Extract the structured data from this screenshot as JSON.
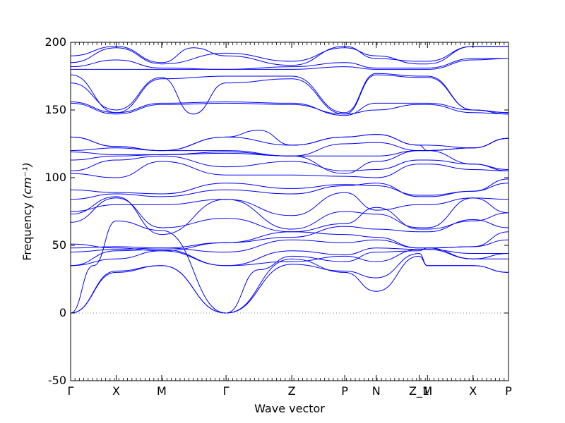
{
  "chart_data": {
    "type": "line",
    "title": "",
    "xlabel": "Wave vector",
    "ylabel": "Frequency",
    "ylabel_unit": "(cm⁻¹)",
    "ylim": [
      -50,
      200
    ],
    "yticks": [
      -50,
      0,
      50,
      100,
      150,
      200
    ],
    "xlim": [
      0,
      1
    ],
    "grid": false,
    "legend": "none",
    "line_color": "#0000ff",
    "zero_line_color": "#808080",
    "high_symmetry_points": [
      {
        "label": "Γ",
        "x": 0.0
      },
      {
        "label": "X",
        "x": 0.104
      },
      {
        "label": "M",
        "x": 0.208
      },
      {
        "label": "Γ",
        "x": 0.355
      },
      {
        "label": "Z",
        "x": 0.505
      },
      {
        "label": "P",
        "x": 0.626
      },
      {
        "label": "N",
        "x": 0.698
      },
      {
        "label": "Z_1",
        "x": 0.796
      },
      {
        "label": "M",
        "x": 0.815
      },
      {
        "label": "X",
        "x": 0.919
      },
      {
        "label": "P",
        "x": 1.0
      }
    ],
    "series": [
      {
        "x": [
          0,
          0.104,
          0.208,
          0.355,
          0.505,
          0.626,
          0.698,
          0.796,
          0.815,
          0.919,
          1
        ],
        "y": [
          0,
          30,
          35,
          0,
          40,
          30,
          16,
          42,
          35,
          35,
          30
        ]
      },
      {
        "x": [
          0,
          0.104,
          0.208,
          0.355,
          0.505,
          0.626,
          0.698,
          0.796,
          0.815,
          0.919,
          1
        ],
        "y": [
          0,
          31,
          35,
          0,
          36,
          31,
          26,
          44,
          35,
          35,
          30
        ]
      },
      {
        "x": [
          0,
          0.052,
          0.104,
          0.208,
          0.355,
          0.43,
          0.505,
          0.626,
          0.698,
          0.796,
          0.815,
          0.919,
          1
        ],
        "y": [
          0,
          35,
          68,
          61,
          0,
          32,
          42,
          38,
          45,
          46,
          48,
          40,
          40
        ]
      },
      {
        "x": [
          0,
          0.104,
          0.208,
          0.355,
          0.505,
          0.626,
          0.698,
          0.796,
          0.815,
          0.919,
          1
        ],
        "y": [
          35,
          40,
          46,
          35,
          38,
          42,
          38,
          47,
          47,
          40,
          44
        ]
      },
      {
        "x": [
          0,
          0.104,
          0.208,
          0.355,
          0.505,
          0.626,
          0.698,
          0.796,
          0.815,
          0.919,
          1
        ],
        "y": [
          35,
          46,
          47,
          35,
          46,
          43,
          48,
          47,
          47,
          44,
          44
        ]
      },
      {
        "x": [
          0,
          0.104,
          0.208,
          0.355,
          0.505,
          0.626,
          0.698,
          0.796,
          0.815,
          0.919,
          1
        ],
        "y": [
          45,
          47,
          48,
          45,
          54,
          52,
          54,
          48,
          48,
          49,
          54
        ]
      },
      {
        "x": [
          0,
          0.104,
          0.208,
          0.355,
          0.505,
          0.626,
          0.698,
          0.796,
          0.815,
          0.919,
          1
        ],
        "y": [
          48,
          49,
          48,
          52,
          60,
          58,
          56,
          48,
          48,
          49,
          60
        ]
      },
      {
        "x": [
          0,
          0.104,
          0.208,
          0.355,
          0.505,
          0.626,
          0.698,
          0.796,
          0.815,
          0.919,
          1
        ],
        "y": [
          51,
          48,
          46,
          52,
          56,
          64,
          62,
          60,
          60,
          69,
          63
        ]
      },
      {
        "x": [
          0,
          0.104,
          0.208,
          0.355,
          0.505,
          0.626,
          0.698,
          0.796,
          0.815,
          0.919,
          1
        ],
        "y": [
          67,
          85,
          63,
          70,
          60,
          66,
          78,
          62,
          62,
          68,
          74
        ]
      },
      {
        "x": [
          0,
          0.104,
          0.208,
          0.355,
          0.505,
          0.626,
          0.698,
          0.796,
          0.815,
          0.919,
          1
        ],
        "y": [
          73,
          86,
          58,
          84,
          62,
          75,
          73,
          63,
          63,
          85,
          74
        ]
      },
      {
        "x": [
          0,
          0.104,
          0.208,
          0.355,
          0.505,
          0.626,
          0.698,
          0.796,
          0.815,
          0.919,
          1
        ],
        "y": [
          75,
          80,
          80,
          84,
          72,
          89,
          76,
          80,
          80,
          85,
          84
        ]
      },
      {
        "x": [
          0,
          0.104,
          0.208,
          0.355,
          0.505,
          0.626,
          0.698,
          0.796,
          0.815,
          0.919,
          1
        ],
        "y": [
          84,
          88,
          86,
          91,
          88,
          94,
          96,
          86,
          86,
          90,
          96
        ]
      },
      {
        "x": [
          0,
          0.104,
          0.208,
          0.355,
          0.505,
          0.626,
          0.698,
          0.796,
          0.815,
          0.919,
          1
        ],
        "y": [
          91,
          89,
          88,
          96,
          92,
          95,
          94,
          87,
          87,
          90,
          99
        ]
      },
      {
        "x": [
          0,
          0.104,
          0.208,
          0.355,
          0.505,
          0.626,
          0.698,
          0.796,
          0.815,
          0.919,
          1
        ],
        "y": [
          103,
          100,
          112,
          102,
          102,
          101,
          100,
          110,
          110,
          106,
          105
        ]
      },
      {
        "x": [
          0,
          0.104,
          0.208,
          0.355,
          0.505,
          0.626,
          0.698,
          0.796,
          0.815,
          0.919,
          1
        ],
        "y": [
          105,
          113,
          116,
          108,
          112,
          105,
          106,
          113,
          113,
          110,
          105
        ]
      },
      {
        "x": [
          0,
          0.104,
          0.208,
          0.355,
          0.505,
          0.626,
          0.698,
          0.796,
          0.815,
          0.919,
          1
        ],
        "y": [
          113,
          116,
          117,
          118,
          116,
          103,
          112,
          120,
          120,
          110,
          106
        ]
      },
      {
        "x": [
          0,
          0.104,
          0.208,
          0.355,
          0.505,
          0.626,
          0.698,
          0.796,
          0.815,
          0.919,
          1
        ],
        "y": [
          119,
          117,
          117,
          119,
          116,
          116,
          116,
          120,
          120,
          122,
          129
        ]
      },
      {
        "x": [
          0,
          0.104,
          0.208,
          0.355,
          0.505,
          0.626,
          0.698,
          0.796,
          0.815,
          0.919,
          1
        ],
        "y": [
          120,
          122,
          120,
          120,
          116,
          125,
          126,
          120,
          120,
          122,
          129
        ]
      },
      {
        "x": [
          0,
          0.104,
          0.208,
          0.355,
          0.505,
          0.626,
          0.698,
          0.796,
          0.815,
          0.919,
          1
        ],
        "y": [
          130,
          123,
          120,
          130,
          124,
          130,
          132,
          124,
          124,
          122,
          129
        ]
      },
      {
        "x": [
          0,
          0.104,
          0.208,
          0.355,
          0.43,
          0.505,
          0.626,
          0.698,
          0.796,
          0.815,
          0.919,
          1
        ],
        "y": [
          130,
          123,
          120,
          130,
          135,
          124,
          130,
          132,
          124,
          120,
          122,
          129
        ]
      },
      {
        "x": [
          0,
          0.104,
          0.208,
          0.355,
          0.505,
          0.626,
          0.698,
          0.796,
          0.815,
          0.919,
          1
        ],
        "y": [
          155,
          147,
          154,
          155,
          154,
          147,
          150,
          154,
          154,
          148,
          147
        ]
      },
      {
        "x": [
          0,
          0.104,
          0.208,
          0.355,
          0.505,
          0.626,
          0.698,
          0.796,
          0.815,
          0.919,
          1
        ],
        "y": [
          156,
          148,
          155,
          156,
          155,
          146,
          155,
          155,
          155,
          150,
          148
        ]
      },
      {
        "x": [
          0,
          0.104,
          0.208,
          0.28,
          0.355,
          0.505,
          0.626,
          0.698,
          0.796,
          0.815,
          0.919,
          1
        ],
        "y": [
          170,
          150,
          174,
          147,
          170,
          173,
          147,
          176,
          174,
          174,
          150,
          147
        ]
      },
      {
        "x": [
          0,
          0.104,
          0.208,
          0.355,
          0.505,
          0.626,
          0.698,
          0.796,
          0.815,
          0.919,
          1
        ],
        "y": [
          176,
          148,
          173,
          175,
          175,
          148,
          177,
          175,
          175,
          150,
          148
        ]
      },
      {
        "x": [
          0,
          0.104,
          0.208,
          0.355,
          0.505,
          0.626,
          0.698,
          0.796,
          0.815,
          0.919,
          1
        ],
        "y": [
          180,
          180,
          180,
          180,
          180,
          182,
          180,
          180,
          180,
          187,
          188
        ]
      },
      {
        "x": [
          0,
          0.104,
          0.208,
          0.355,
          0.505,
          0.626,
          0.698,
          0.796,
          0.815,
          0.919,
          1
        ],
        "y": [
          182,
          187,
          181,
          180,
          182,
          185,
          181,
          181,
          181,
          188,
          188
        ]
      },
      {
        "x": [
          0,
          0.104,
          0.208,
          0.355,
          0.505,
          0.626,
          0.698,
          0.796,
          0.815,
          0.919,
          1
        ],
        "y": [
          185,
          196,
          184,
          192,
          186,
          196,
          190,
          184,
          184,
          197,
          197
        ]
      },
      {
        "x": [
          0,
          0.104,
          0.208,
          0.28,
          0.355,
          0.505,
          0.626,
          0.698,
          0.796,
          0.815,
          0.919,
          1
        ],
        "y": [
          190,
          197,
          185,
          196,
          190,
          183,
          197,
          188,
          186,
          186,
          197,
          197
        ]
      }
    ]
  }
}
